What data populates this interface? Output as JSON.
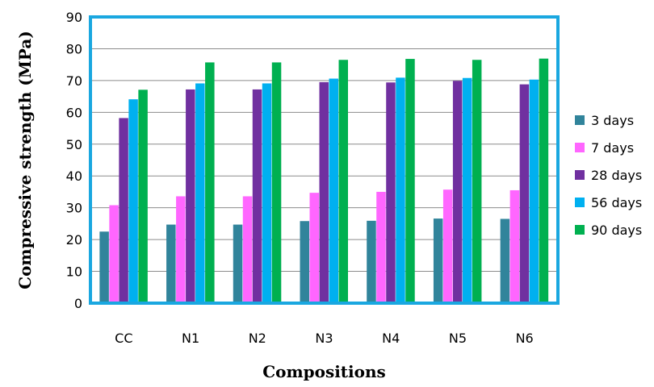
{
  "chart_data": {
    "type": "bar",
    "title": "",
    "xlabel": "Compositions",
    "ylabel": "Compressive strength (MPa)",
    "ylim": [
      0,
      90
    ],
    "ytick_step": 10,
    "yticks": [
      "0",
      "10",
      "20",
      "30",
      "40",
      "50",
      "60",
      "70",
      "80",
      "90"
    ],
    "grid": true,
    "legend_position": "right",
    "plot_border_color": "#1AA7E0",
    "categories": [
      "CC",
      "N1",
      "N2",
      "N3",
      "N4",
      "N5",
      "N6"
    ],
    "series": [
      {
        "name": "3 days",
        "color": "#31849B",
        "values": [
          22.5,
          24.7,
          24.7,
          25.8,
          25.9,
          26.6,
          26.5
        ]
      },
      {
        "name": "7 days",
        "color": "#FF66FF",
        "values": [
          30.8,
          33.6,
          33.6,
          34.7,
          35.0,
          35.7,
          35.5
        ]
      },
      {
        "name": "28 days",
        "color": "#7030A0",
        "values": [
          58.2,
          67.2,
          67.2,
          69.5,
          69.4,
          69.9,
          68.8
        ]
      },
      {
        "name": "56 days",
        "color": "#00B0F0",
        "values": [
          64.1,
          69.1,
          69.1,
          70.6,
          70.9,
          70.8,
          70.3
        ]
      },
      {
        "name": "90 days",
        "color": "#00B050",
        "values": [
          67.1,
          75.7,
          75.7,
          76.5,
          76.8,
          76.5,
          76.9
        ]
      }
    ]
  }
}
